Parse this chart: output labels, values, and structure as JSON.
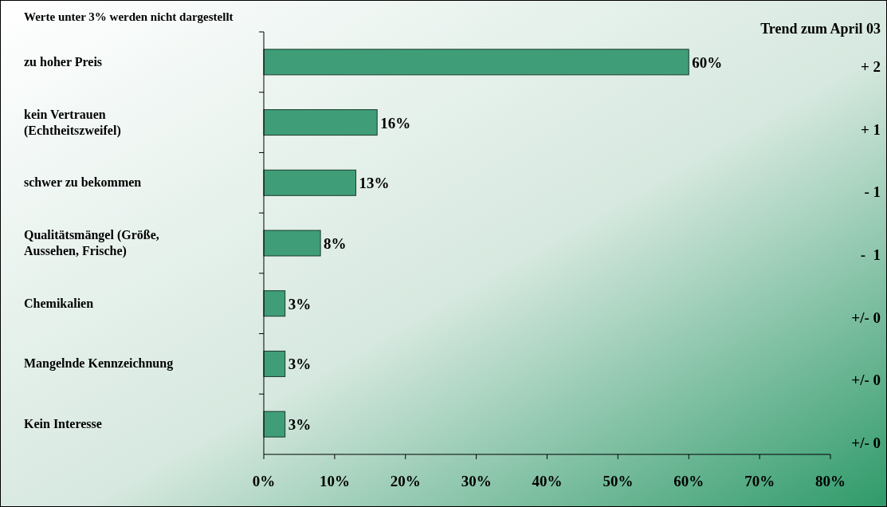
{
  "chart_data": {
    "type": "bar",
    "orientation": "horizontal",
    "categories": [
      "zu hoher Preis",
      "kein Vertrauen (Echtheitszweifel)",
      "schwer zu bekommen",
      "Qualitätsmängel (Größe, Aussehen, Frische)",
      "Chemikalien",
      "Mangelnde Kennzeichnung",
      "Kein Interesse"
    ],
    "values": [
      60,
      16,
      13,
      8,
      3,
      3,
      3
    ],
    "value_labels": [
      "60%",
      "16%",
      "13%",
      "8%",
      "3%",
      "3%",
      "3%"
    ],
    "color": "#3f9e78",
    "xlim": [
      0,
      80
    ],
    "xticks": [
      {
        "value": 0,
        "label": "0%"
      },
      {
        "value": 10,
        "label": "10%"
      },
      {
        "value": 20,
        "label": "20%"
      },
      {
        "value": 30,
        "label": "30%"
      },
      {
        "value": 40,
        "label": "40%"
      },
      {
        "value": 50,
        "label": "50%"
      },
      {
        "value": 60,
        "label": "60%"
      },
      {
        "value": 70,
        "label": "70%"
      },
      {
        "value": 80,
        "label": "80%"
      }
    ],
    "annotations": [
      "Werte unter 3% werden nicht dargestellt",
      "Trend zum April 03",
      "+ 2",
      "+ 1",
      "- 1",
      "-  1",
      "+/- 0",
      "+/- 0",
      "+/- 0"
    ]
  }
}
